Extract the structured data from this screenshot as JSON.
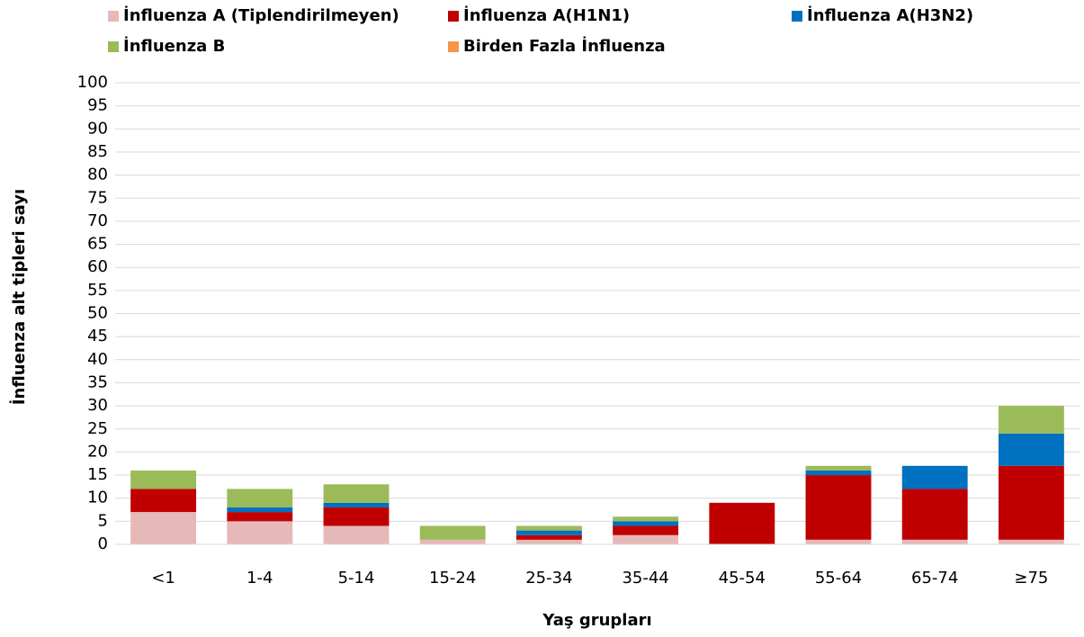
{
  "chart_data": {
    "type": "stacked_bar",
    "x_label": "Yaş grupları",
    "y_label": "İnfluenza alt tipleri sayı",
    "categories": [
      "<1",
      "1-4",
      "5-14",
      "15-24",
      "25-34",
      "35-44",
      "45-54",
      "55-64",
      "65-74",
      "≥75"
    ],
    "series": [
      {
        "name": "İnfluenza A (Tiplendirilmeyen)",
        "color": "#e6b8b7",
        "values": [
          7,
          5,
          4,
          1,
          1,
          2,
          0,
          1,
          1,
          1
        ]
      },
      {
        "name": "İnfluenza A(H1N1)",
        "color": "#c00000",
        "values": [
          5,
          2,
          4,
          0,
          1,
          2,
          9,
          14,
          11,
          16
        ]
      },
      {
        "name": "İnfluenza A(H3N2)",
        "color": "#0070c0",
        "values": [
          0,
          1,
          1,
          0,
          1,
          1,
          0,
          1,
          5,
          7
        ]
      },
      {
        "name": "İnfluenza B",
        "color": "#9bbb59",
        "values": [
          4,
          4,
          4,
          3,
          1,
          1,
          0,
          1,
          0,
          6
        ]
      },
      {
        "name": "Birden Fazla İnfluenza",
        "color": "#f79646",
        "values": [
          0,
          0,
          0,
          0,
          0,
          0,
          0,
          0,
          0,
          0
        ]
      }
    ],
    "ylim": [
      0,
      100
    ],
    "yticks": [
      0,
      5,
      10,
      15,
      20,
      25,
      30,
      35,
      40,
      45,
      50,
      55,
      60,
      65,
      70,
      75,
      80,
      85,
      90,
      95,
      100
    ],
    "grid": true,
    "legend": "top"
  }
}
